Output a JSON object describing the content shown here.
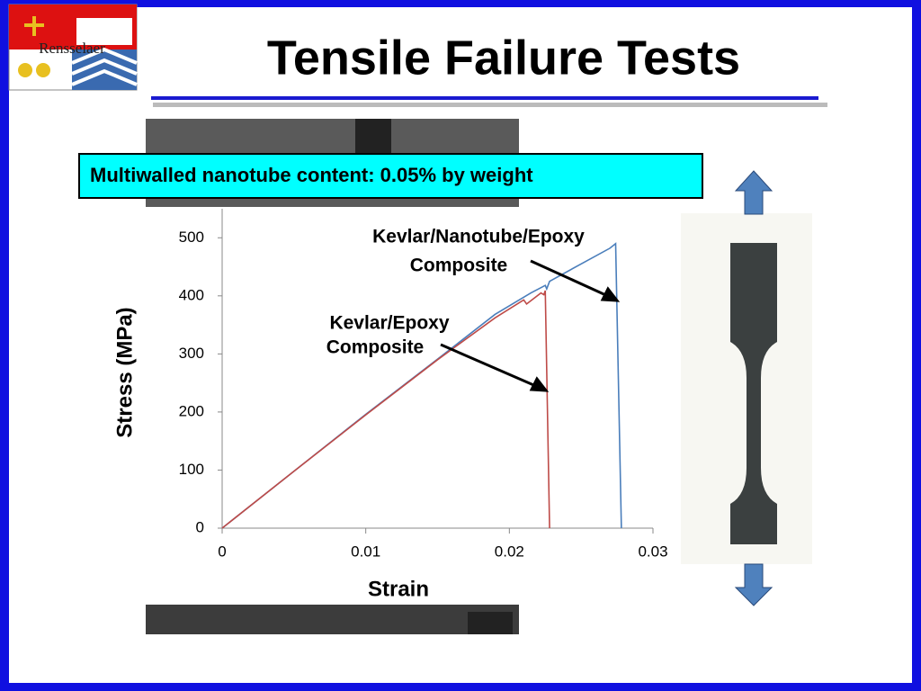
{
  "header": {
    "logo_text": "Rensselaer",
    "title": "Tensile Failure Tests"
  },
  "banner": "Multiwalled nanotube content: 0.05% by weight",
  "chart_data": {
    "type": "line",
    "x_label": "Strain",
    "y_label": "Stress (MPa)",
    "xlim": [
      0,
      0.03
    ],
    "xticks": [
      0,
      0.01,
      0.02,
      0.03
    ],
    "ylim": [
      0,
      550
    ],
    "yticks": [
      0,
      100,
      200,
      300,
      400,
      500
    ],
    "grid": false,
    "series": [
      {
        "color": "#4a7ebb",
        "x": [
          0,
          0.005,
          0.01,
          0.015,
          0.019,
          0.0215,
          0.0225,
          0.0226,
          0.0228,
          0.025,
          0.027,
          0.0274,
          0.0278
        ],
        "values": [
          0,
          98,
          196,
          291,
          368,
          405,
          418,
          412,
          425,
          455,
          482,
          490,
          0
        ]
      },
      {
        "color": "#be4b48",
        "x": [
          0,
          0.005,
          0.01,
          0.015,
          0.019,
          0.021,
          0.0212,
          0.0222,
          0.0224,
          0.0225,
          0.0228
        ],
        "values": [
          0,
          98,
          195,
          290,
          362,
          393,
          386,
          405,
          402,
          409,
          0
        ]
      }
    ],
    "annotations": [
      {
        "lines": [
          "Kevlar/Nanotube/Epoxy",
          "Composite"
        ]
      },
      {
        "lines": [
          "Kevlar/Epoxy",
          "Composite"
        ]
      }
    ]
  }
}
